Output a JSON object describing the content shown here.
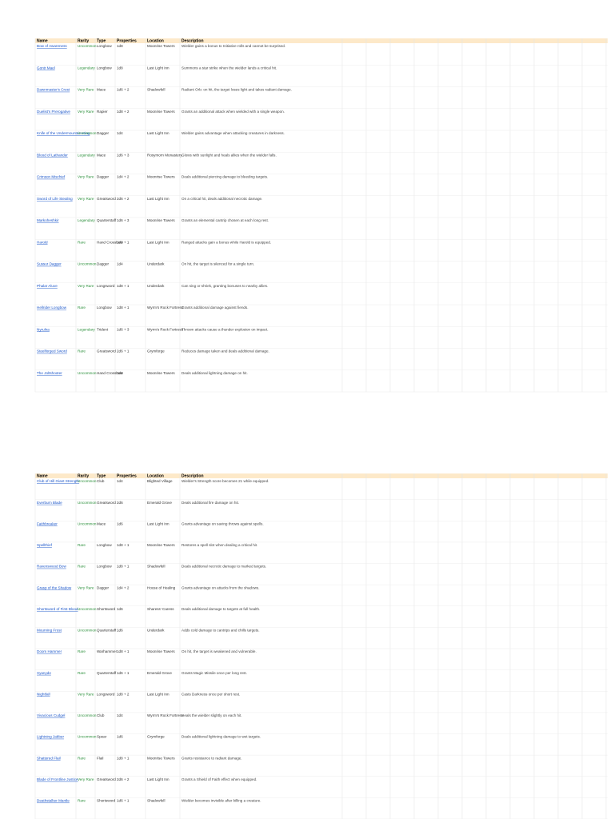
{
  "sheets": [
    {
      "header": [
        "Name",
        "Rarity",
        "Type",
        "Properties",
        "Location",
        "Description"
      ],
      "rows": [
        [
          "Bow of Awareness",
          "Uncommon",
          "Longbow",
          "1d8",
          "Moonrise Towers",
          "Wielder gains a bonus to Initiative rolls and cannot be surprised."
        ],
        [
          "Gontr Mael",
          "Legendary",
          "Longbow",
          "1d8",
          "Last Light Inn",
          "Summons a star strike when the wielder lands a critical hit."
        ],
        [
          "Dawnmaster's Crest",
          "Very Rare",
          "Mace",
          "1d6 + 2",
          "Shadowfell",
          "Radiant Orb: on hit, the target loses light and takes radiant damage."
        ],
        [
          "Duelist's Prerogative",
          "Very Rare",
          "Rapier",
          "1d8 + 2",
          "Moonrise Towers",
          "Grants an additional attack when wielded with a single weapon."
        ],
        [
          "Knife of the Undermountain King",
          "Uncommon",
          "Dagger",
          "1d4",
          "Last Light Inn",
          "Wielder gains advantage when attacking creatures in darkness."
        ],
        [
          "Blood of Lathander",
          "Legendary",
          "Mace",
          "1d6 + 3",
          "Rosymorn Monastery",
          "Glows with sunlight and heals allies when the wielder falls."
        ],
        [
          "Crimson Mischief",
          "Very Rare",
          "Dagger",
          "1d4 + 2",
          "Moonrise Towers",
          "Deals additional piercing damage to bleeding targets."
        ],
        [
          "Sword of Life Stealing",
          "Very Rare",
          "Greatsword",
          "2d6 + 2",
          "Last Light Inn",
          "On a critical hit, deals additional necrotic damage."
        ],
        [
          "Markoheshkir",
          "Legendary",
          "Quarterstaff",
          "1d6 + 3",
          "Moonrise Towers",
          "Grants an elemental cantrip chosen at each long rest."
        ],
        [
          "Harold",
          "Rare",
          "Hand Crossbow",
          "1d6 + 1",
          "Last Light Inn",
          "Ranged attacks gain a bonus while Harold is equipped."
        ],
        [
          "Sussur Dagger",
          "Uncommon",
          "Dagger",
          "1d4",
          "Underdark",
          "On hit, the target is silenced for a single turn."
        ],
        [
          "Phalar Aluve",
          "Very Rare",
          "Longsword",
          "1d8 + 1",
          "Underdark",
          "Can sing or shriek, granting bonuses to nearby allies."
        ],
        [
          "Hellrider Longbow",
          "Rare",
          "Longbow",
          "1d8 + 1",
          "Wyrm's Rock Fortress",
          "Grants additional damage against fiends."
        ],
        [
          "Nyrulna",
          "Legendary",
          "Trident",
          "1d6 + 3",
          "Wyrm's Rock Fortress",
          "Thrown attacks cause a thunder explosion on impact."
        ],
        [
          "Steelforged Sword",
          "Rare",
          "Greatsword",
          "2d6 + 1",
          "Grymforge",
          "Reduces damage taken and deals additional damage."
        ],
        [
          "The Joltshooter",
          "Uncommon",
          "Hand Crossbow",
          "1d6",
          "Moonrise Towers",
          "Deals additional lightning damage on hit."
        ]
      ]
    },
    {
      "header": [
        "Name",
        "Rarity",
        "Type",
        "Properties",
        "Location",
        "Description"
      ],
      "rows": [
        [
          "Club of Hill Giant Strength",
          "Uncommon",
          "Club",
          "1d4",
          "Blighted Village",
          "Wielder's Strength score becomes 21 while equipped."
        ],
        [
          "Everburn Blade",
          "Uncommon",
          "Greatsword",
          "2d6",
          "Emerald Grove",
          "Deals additional fire damage on hit."
        ],
        [
          "Faithbreaker",
          "Uncommon",
          "Mace",
          "1d6",
          "Last Light Inn",
          "Grants advantage on saving throws against spells."
        ],
        [
          "Spellthief",
          "Rare",
          "Longbow",
          "1d8 + 1",
          "Moonrise Towers",
          "Restores a spell slot when dealing a critical hit."
        ],
        [
          "Ravenswood Bow",
          "Rare",
          "Longbow",
          "1d8 + 1",
          "Shadowfell",
          "Deals additional necrotic damage to marked targets."
        ],
        [
          "Grasp of the Shadow",
          "Very Rare",
          "Dagger",
          "1d4 + 2",
          "House of Healing",
          "Grants advantage on attacks from the shadows."
        ],
        [
          "Shortsword of First Blood",
          "Uncommon",
          "Shortsword",
          "1d6",
          "Sharess' Caress",
          "Deals additional damage to targets at full health."
        ],
        [
          "Mourning Frost",
          "Uncommon",
          "Quarterstaff",
          "1d6",
          "Underdark",
          "Adds cold damage to cantrips and chills targets."
        ],
        [
          "Doom Hammer",
          "Rare",
          "Warhammer",
          "1d8 + 1",
          "Moonrise Towers",
          "On hit, the target is weakened and vulnerable."
        ],
        [
          "Xyanyde",
          "Rare",
          "Quarterstaff",
          "1d6 + 1",
          "Emerald Grove",
          "Grants Magic Missile once per long rest."
        ],
        [
          "Nightfall",
          "Very Rare",
          "Longsword",
          "1d8 + 2",
          "Last Light Inn",
          "Casts Darkness once per short rest."
        ],
        [
          "Vivacious Cudgel",
          "Uncommon",
          "Club",
          "1d4",
          "Wyrm's Rock Fortress",
          "Heals the wielder slightly on each hit."
        ],
        [
          "Lightning Jabber",
          "Uncommon",
          "Spear",
          "1d6",
          "Grymforge",
          "Deals additional lightning damage to wet targets."
        ],
        [
          "Shattered Flail",
          "Rare",
          "Flail",
          "1d8 + 1",
          "Moonrise Towers",
          "Grants resistance to radiant damage."
        ],
        [
          "Blade of Frontline Justice",
          "Very Rare",
          "Greatsword",
          "2d6 + 2",
          "Last Light Inn",
          "Grants a Shield of Faith effect when equipped."
        ],
        [
          "Deathstalker Mantle",
          "Rare",
          "Shortsword",
          "1d6 + 1",
          "Shadowfell",
          "Wielder becomes invisible after killing a creature."
        ]
      ]
    }
  ]
}
